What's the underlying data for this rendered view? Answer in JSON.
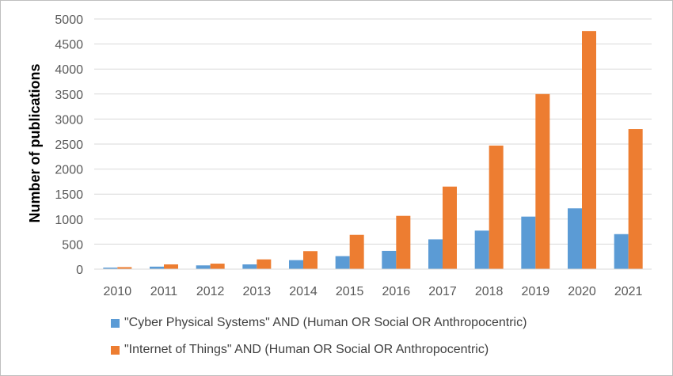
{
  "chart_data": {
    "type": "bar",
    "title": "",
    "xlabel": "",
    "ylabel": "Number of publications",
    "ylim": [
      0,
      5000
    ],
    "yticks": [
      "0",
      "500",
      "1000",
      "1500",
      "2000",
      "2500",
      "3000",
      "3500",
      "4000",
      "4500",
      "5000"
    ],
    "grid": true,
    "legend_position": "bottom",
    "categories": [
      "2010",
      "2011",
      "2012",
      "2013",
      "2014",
      "2015",
      "2016",
      "2017",
      "2018",
      "2019",
      "2020",
      "2021"
    ],
    "series": [
      {
        "name": "\"Cyber Physical Systems\" AND (Human OR Social OR Anthropocentric)",
        "color": "#5b9bd5",
        "values": [
          30,
          50,
          75,
          95,
          180,
          260,
          365,
          595,
          770,
          1050,
          1215,
          700
        ]
      },
      {
        "name": "\"Internet of Things\" AND (Human OR Social OR Anthropocentric)",
        "color": "#ed7d31",
        "values": [
          40,
          95,
          110,
          195,
          360,
          685,
          1065,
          1650,
          2470,
          3500,
          4760,
          2800
        ]
      }
    ]
  }
}
